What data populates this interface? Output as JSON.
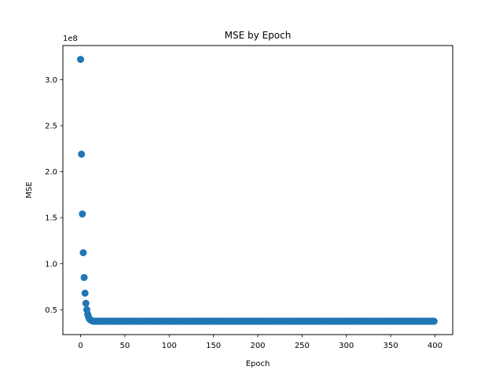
{
  "chart_data": {
    "type": "scatter",
    "title": "MSE by Epoch",
    "xlabel": "Epoch",
    "ylabel": "MSE",
    "y_offset_text": "1e8",
    "y_scale": 100000000,
    "xlim": [
      -20,
      420
    ],
    "ylim": [
      23000000,
      337000000
    ],
    "x_ticks": [
      0,
      50,
      100,
      150,
      200,
      250,
      300,
      350,
      400
    ],
    "x_tick_labels": [
      "0",
      "50",
      "100",
      "150",
      "200",
      "250",
      "300",
      "350",
      "400"
    ],
    "y_ticks": [
      50000000,
      100000000,
      150000000,
      200000000,
      250000000,
      300000000
    ],
    "y_tick_labels": [
      "0.5",
      "1.0",
      "1.5",
      "2.0",
      "2.5",
      "3.0"
    ],
    "grid": false,
    "marker_color": "#1f77b4",
    "series": [
      {
        "x_start": 0,
        "x_step": 1,
        "values_head": [
          322000000,
          219000000,
          154000000,
          112000000,
          85000000,
          68000000,
          57000000,
          50000000,
          45000000,
          42000000,
          40000000,
          39000000,
          38500000,
          38000000,
          37700000
        ],
        "plateau_value": 37500000,
        "plateau_until": 399
      }
    ]
  }
}
